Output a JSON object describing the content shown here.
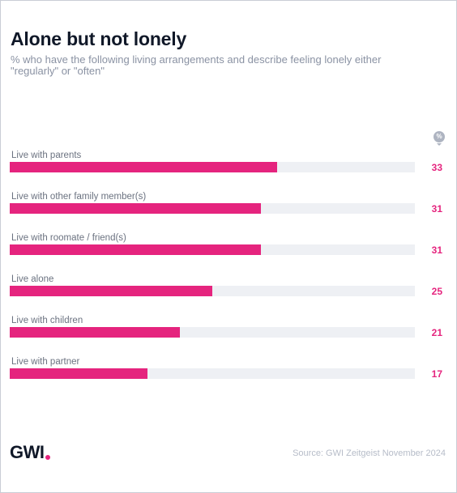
{
  "chart_data": {
    "type": "bar",
    "orientation": "horizontal",
    "title": "Alone but not lonely",
    "subtitle": "% who have the following living arrangements and describe feeling lonely either \"regularly\" or \"often\"",
    "unit_badge": "%",
    "categories": [
      "Live with parents",
      "Live with other family member(s)",
      "Live with roomate / friend(s)",
      "Live alone",
      "Live with children",
      "Live with partner"
    ],
    "values": [
      33,
      31,
      31,
      25,
      21,
      17
    ],
    "xlim": [
      0,
      50
    ],
    "bar_color": "#e5247e",
    "track_color": "#eef0f4",
    "value_color": "#e5247e"
  },
  "footer": {
    "logo": "GWI",
    "source": "Source: GWI Zeitgeist November 2024"
  }
}
